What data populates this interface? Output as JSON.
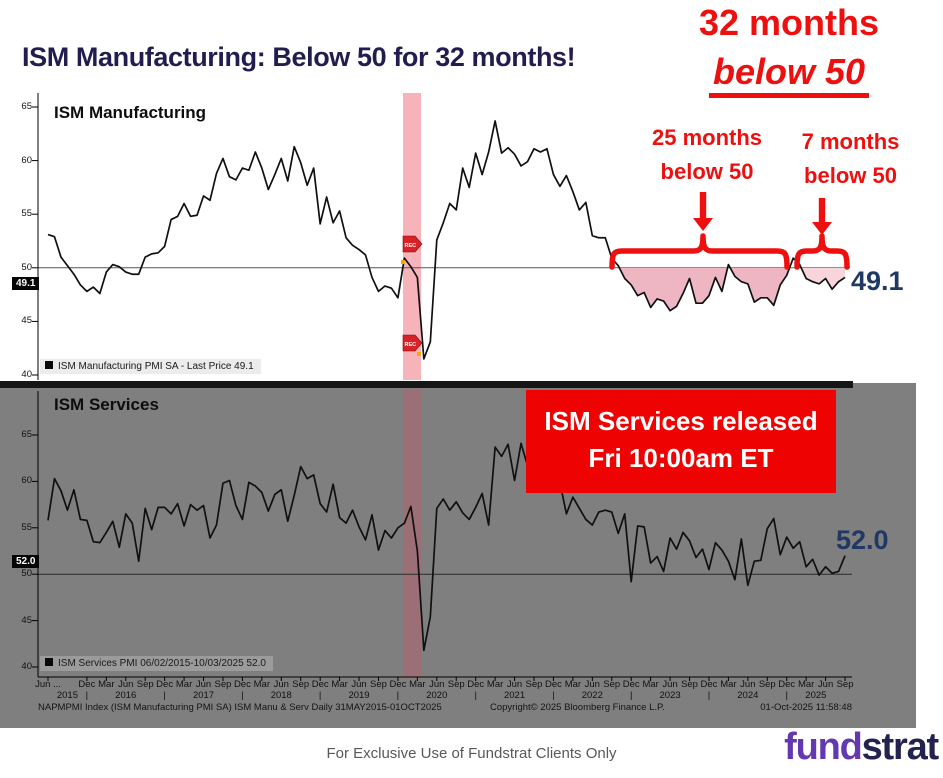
{
  "page": {
    "title": "ISM Manufacturing: Below 50 for 32 months!",
    "disclaimer": "For Exclusive Use of Fundstrat Clients Only",
    "logo_part1": "fund",
    "logo_part2": "strat"
  },
  "headline": {
    "line1": "32 months",
    "line2": "below 50"
  },
  "callouts": {
    "left": {
      "line1": "25 months",
      "line2": "below 50"
    },
    "right": {
      "line1": "7 months",
      "line2": "below 50"
    }
  },
  "release_box": {
    "line1": "ISM Services released",
    "line2": "Fri 10:00am ET"
  },
  "bloomberg": {
    "left": "NAPMPMI Index (ISM Manufacturing PMI SA) ISM Manu & Serv Daily 31MAY2015-01OCT2025",
    "center": "Copyright© 2025 Bloomberg Finance L.P.",
    "right": "01-Oct-2025 11:58:48"
  },
  "colors": {
    "annotation_red": "#ee0f0f",
    "box_red": "#ee0202",
    "title_navy": "#221d4e",
    "price_navy": "#1f3864",
    "panel_gray": "#7f7f7f",
    "recession_band_pink": "#f6b3ba",
    "recession_band_dimmed": "#9c6f76",
    "below50_fill": "#eeb5c2",
    "below50_fill_light": "#f7d5da",
    "logo_purple": "#6338b1",
    "logo_navy": "#23234f"
  },
  "chart_data": [
    {
      "type": "line",
      "panel_title": "ISM Manufacturing",
      "legend": "ISM Manufacturing PMI SA - Last Price 49.1",
      "axis_badge_value": "49.1",
      "last_price_label": "49.1",
      "last_price": 49.1,
      "ylim": [
        40,
        67
      ],
      "yticks": [
        65,
        60,
        55,
        50,
        45,
        40
      ],
      "reference_line": 50,
      "x_monthly_from": "2015-06",
      "x_monthly_to": "2025-09",
      "recession_band_months": [
        "2020-01",
        "2020-04"
      ],
      "below_50_shading_from": "2022-10",
      "rec_marker_label": "REC",
      "values": [
        53.1,
        52.9,
        51.0,
        50.2,
        49.4,
        48.4,
        47.8,
        48.2,
        47.6,
        49.6,
        50.3,
        50.1,
        49.6,
        49.4,
        49.4,
        51.0,
        51.3,
        51.4,
        52.0,
        54.5,
        54.8,
        56.0,
        54.8,
        54.9,
        56.7,
        56.3,
        58.8,
        60.2,
        58.5,
        58.2,
        59.3,
        59.1,
        60.8,
        59.3,
        57.3,
        58.7,
        60.2,
        58.1,
        61.3,
        59.8,
        57.7,
        59.3,
        54.1,
        56.6,
        54.2,
        55.3,
        52.8,
        52.1,
        51.7,
        51.2,
        49.1,
        47.8,
        48.3,
        48.1,
        47.2,
        50.9,
        50.1,
        49.1,
        41.5,
        43.1,
        52.6,
        54.2,
        56.0,
        55.4,
        59.3,
        57.5,
        60.7,
        58.7,
        60.8,
        63.7,
        60.7,
        61.2,
        60.6,
        59.5,
        59.9,
        61.1,
        60.8,
        61.1,
        58.7,
        57.6,
        58.6,
        57.1,
        55.4,
        56.1,
        53.0,
        52.8,
        52.8,
        50.9,
        50.2,
        49.0,
        48.4,
        47.4,
        47.7,
        46.3,
        47.1,
        46.9,
        46.0,
        46.4,
        47.6,
        49.0,
        46.7,
        46.7,
        47.4,
        49.1,
        47.8,
        50.3,
        49.2,
        48.7,
        48.5,
        46.8,
        47.2,
        47.2,
        46.5,
        48.4,
        49.3,
        50.9,
        50.3,
        49.0,
        48.7,
        48.5,
        49.0,
        48.0,
        48.7,
        49.1
      ]
    },
    {
      "type": "line",
      "panel_title": "ISM Services",
      "legend": "ISM Services PMI 06/02/2015-10/03/2025 52.0",
      "axis_badge_value": "52.0",
      "last_price_label": "52.0",
      "last_price": 52.0,
      "ylim": [
        40,
        68
      ],
      "yticks": [
        65,
        60,
        55,
        50,
        45,
        40
      ],
      "reference_line": 50,
      "x_monthly_from": "2015-06",
      "x_monthly_to": "2025-09",
      "recession_band_months": [
        "2020-01",
        "2020-04"
      ],
      "xaxis": {
        "tick_labels": [
          "Jun ...",
          "Dec",
          "Mar",
          "Jun",
          "Sep",
          "Dec",
          "Mar",
          "Jun",
          "Sep",
          "Dec",
          "Mar",
          "Jun",
          "Sep",
          "Dec",
          "Mar",
          "Jun",
          "Sep",
          "Dec",
          "Mar",
          "Jun",
          "Sep",
          "Dec",
          "Mar",
          "Jun",
          "Sep",
          "Dec",
          "Mar",
          "Jun",
          "Sep",
          "Dec",
          "Mar",
          "Jun",
          "Sep",
          "Dec",
          "Mar",
          "Jun",
          "Sep",
          "Dec",
          "Mar",
          "Jun",
          "Sep"
        ],
        "year_labels": [
          "2015",
          "2016",
          "2017",
          "2018",
          "2019",
          "2020",
          "2021",
          "2022",
          "2023",
          "2024",
          "2025"
        ]
      },
      "values": [
        55.8,
        60.3,
        59.0,
        56.9,
        59.1,
        55.9,
        55.8,
        53.5,
        53.4,
        54.5,
        55.7,
        52.9,
        56.5,
        55.5,
        51.4,
        57.1,
        54.8,
        57.2,
        57.2,
        56.5,
        57.6,
        55.2,
        57.5,
        56.9,
        57.4,
        53.9,
        55.3,
        59.8,
        60.1,
        57.4,
        55.9,
        59.9,
        59.5,
        58.8,
        56.8,
        58.6,
        59.1,
        55.7,
        58.5,
        61.6,
        60.3,
        60.7,
        57.6,
        56.7,
        59.7,
        56.1,
        55.5,
        56.9,
        55.1,
        53.7,
        56.4,
        52.6,
        54.7,
        53.9,
        55.0,
        55.5,
        57.3,
        52.5,
        41.8,
        45.4,
        57.1,
        58.1,
        56.9,
        57.8,
        56.6,
        55.9,
        57.2,
        58.7,
        55.3,
        63.7,
        62.7,
        64.0,
        60.1,
        64.1,
        61.7,
        61.9,
        64.5,
        64.0,
        62.3,
        59.9,
        56.5,
        58.3,
        57.1,
        55.9,
        55.3,
        56.7,
        56.9,
        56.7,
        54.4,
        56.5,
        49.2,
        55.2,
        55.1,
        51.2,
        51.9,
        50.3,
        53.9,
        52.7,
        54.5,
        53.6,
        51.8,
        52.7,
        50.5,
        53.4,
        52.6,
        51.4,
        49.4,
        53.8,
        48.8,
        51.4,
        51.5,
        54.9,
        56.0,
        52.1,
        54.0,
        52.8,
        53.5,
        50.8,
        51.6,
        49.9,
        50.8,
        50.1,
        50.3,
        52.0
      ]
    }
  ]
}
